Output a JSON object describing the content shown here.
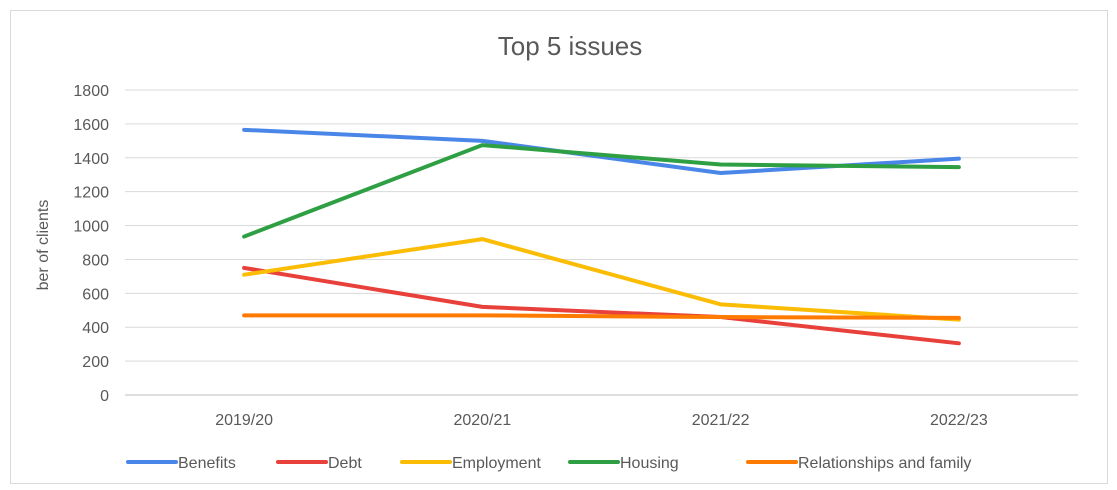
{
  "chart_data": {
    "type": "line",
    "title": "Top 5 issues",
    "ylabel": "ber of clients",
    "xlabel": "",
    "categories": [
      "2019/20",
      "2020/21",
      "2021/22",
      "2022/23"
    ],
    "ylim": [
      0,
      1800
    ],
    "yticks": [
      "0",
      "200",
      "400",
      "600",
      "800",
      "1000",
      "1200",
      "1400",
      "1600",
      "1800"
    ],
    "grid": true,
    "legend_position": "bottom",
    "series": [
      {
        "name": "Benefits",
        "color": "#4a86e8",
        "values": [
          1565,
          1500,
          1310,
          1395
        ]
      },
      {
        "name": "Debt",
        "color": "#e8403a",
        "values": [
          750,
          520,
          460,
          305
        ]
      },
      {
        "name": "Employment",
        "color": "#fbbc04",
        "values": [
          710,
          920,
          535,
          445
        ]
      },
      {
        "name": "Housing",
        "color": "#2ea043",
        "values": [
          935,
          1475,
          1360,
          1345
        ]
      },
      {
        "name": "Relationships and family",
        "color": "#ff7a00",
        "values": [
          470,
          470,
          460,
          455
        ]
      }
    ]
  }
}
